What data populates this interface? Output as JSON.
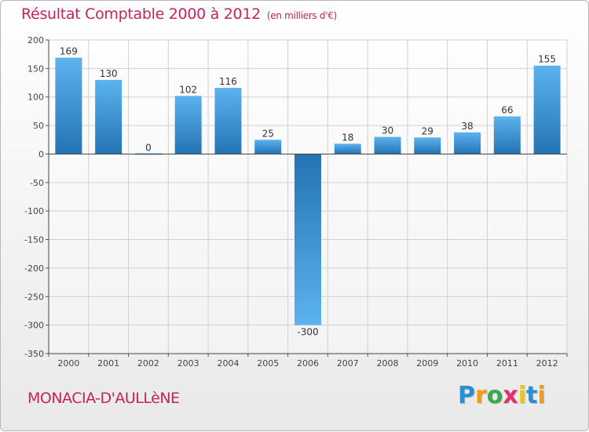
{
  "title": "Résultat Comptable 2000 à 2012",
  "subtitle": "(en milliers d'€)",
  "commune": "MONACIA-D'AULLèNE",
  "logo": {
    "letters": [
      "P",
      "r",
      "o",
      "x",
      "i",
      "t",
      "i"
    ],
    "colors": [
      "#2a8fd6",
      "#f39c12",
      "#36a94a",
      "#e2306b",
      "#f0c419",
      "#2a8fd6",
      "#f39c12"
    ]
  },
  "colors": {
    "bar_light": "#5cb3ee",
    "bar_dark": "#2473b3",
    "title": "#c2245b",
    "grid": "#d0d0d0"
  },
  "chart_data": {
    "type": "bar",
    "categories": [
      "2000",
      "2001",
      "2002",
      "2003",
      "2004",
      "2005",
      "2006",
      "2007",
      "2008",
      "2009",
      "2010",
      "2011",
      "2012"
    ],
    "values": [
      169,
      130,
      0,
      102,
      116,
      25,
      -300,
      18,
      30,
      29,
      38,
      66,
      155
    ],
    "data_labels": [
      "169",
      "130",
      "0",
      "102",
      "116",
      "25",
      "-300",
      "18",
      "30",
      "29",
      "38",
      "66",
      "155"
    ],
    "yticks": [
      200,
      150,
      100,
      50,
      0,
      -50,
      -100,
      -150,
      -200,
      -250,
      -300,
      -350
    ],
    "ytick_labels": [
      "200",
      "150",
      "100",
      "50",
      "0",
      "-50",
      "-100",
      "-150",
      "-200",
      "-250",
      "-300",
      "-350"
    ],
    "ylim": [
      -350,
      200
    ],
    "xlabel": "",
    "ylabel": "",
    "grid": true
  }
}
